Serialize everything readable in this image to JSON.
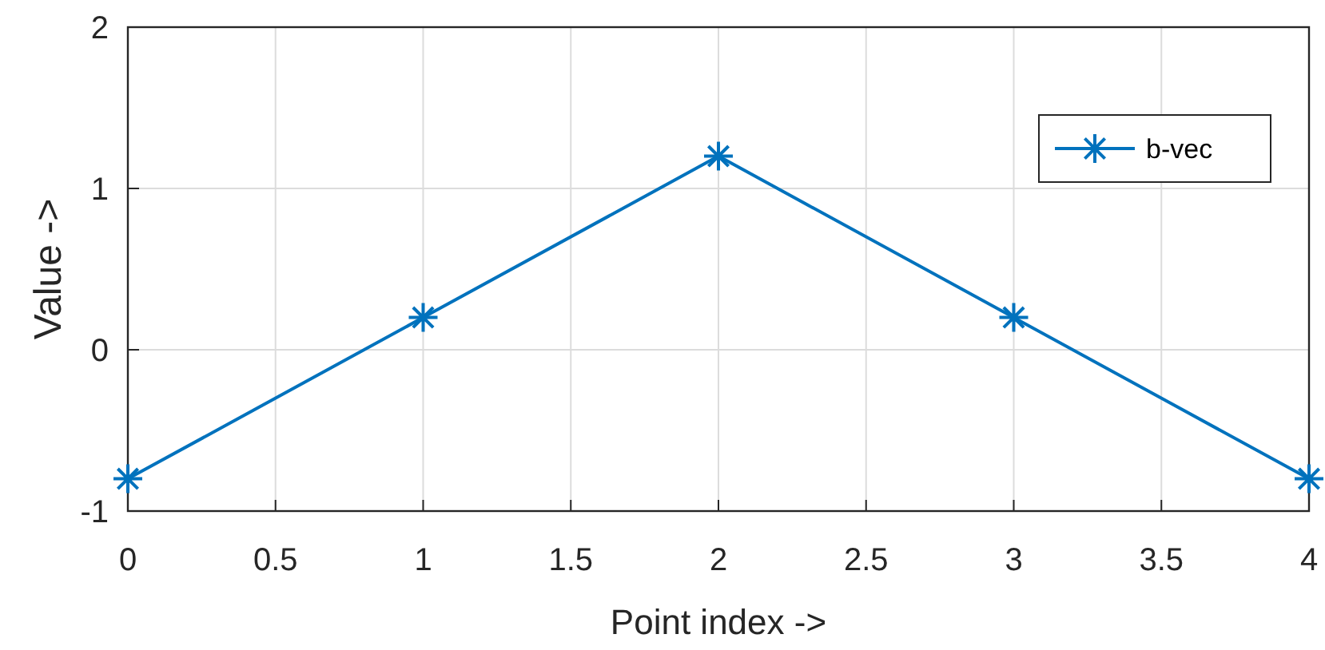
{
  "chart_data": {
    "type": "line",
    "xlabel": "Point index ->",
    "ylabel": "Value ->",
    "x": [
      0,
      1,
      2,
      3,
      4
    ],
    "series": [
      {
        "name": "b-vec",
        "color": "#0072bd",
        "values": [
          -0.8,
          0.2,
          1.2,
          0.2,
          -0.8
        ]
      }
    ],
    "xlim": [
      0,
      4
    ],
    "xticks": [
      0,
      0.5,
      1,
      1.5,
      2,
      2.5,
      3,
      3.5,
      4
    ],
    "ylim": [
      -1,
      2
    ],
    "yticks": [
      -1,
      0,
      1,
      2
    ],
    "grid": true,
    "legend": "top right",
    "marker": "cross",
    "line_style": "solid"
  }
}
